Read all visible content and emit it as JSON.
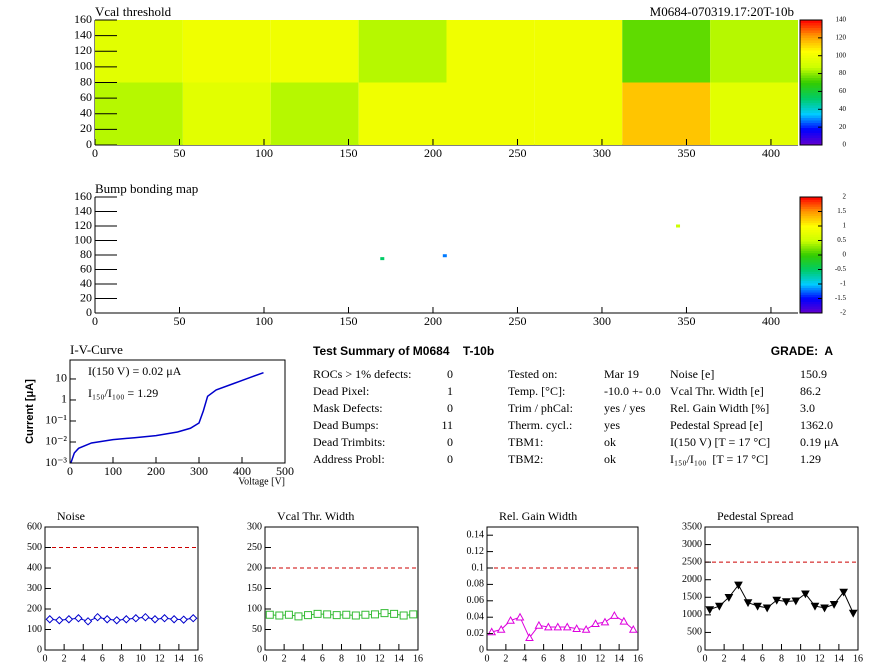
{
  "chart_data": [
    {
      "type": "heatmap",
      "title": "Vcal threshold",
      "annotation": "M0684-070319.17:20T-10b",
      "xbins": [
        0,
        52,
        104,
        156,
        208,
        260,
        312,
        364,
        416
      ],
      "ybins": [
        0,
        80,
        160
      ],
      "z": [
        [
          85,
          95,
          85,
          100,
          100,
          100,
          115,
          95
        ],
        [
          95,
          100,
          100,
          85,
          100,
          100,
          75,
          85
        ]
      ],
      "xlim": [
        0,
        416
      ],
      "ylim": [
        0,
        160
      ],
      "xticks": [
        0,
        50,
        100,
        150,
        200,
        250,
        300,
        350,
        400
      ],
      "yticks": [
        0,
        20,
        40,
        60,
        80,
        100,
        120,
        140,
        160
      ],
      "zlim": [
        0,
        140
      ],
      "zticks": [
        0,
        20,
        40,
        60,
        80,
        100,
        120,
        140
      ],
      "palette": [
        "#6600cc",
        "#0000ff",
        "#00ccff",
        "#00cc66",
        "#33cc00",
        "#ccff00",
        "#ffff00",
        "#ff9900",
        "#ff0000"
      ]
    },
    {
      "type": "scatter",
      "title": "Bump bonding map",
      "x": [
        170,
        207,
        345
      ],
      "y": [
        75,
        79,
        120
      ],
      "z": [
        -0.5,
        -1.2,
        0.5
      ],
      "xlim": [
        0,
        416
      ],
      "ylim": [
        0,
        160
      ],
      "xticks": [
        0,
        50,
        100,
        150,
        200,
        250,
        300,
        350,
        400
      ],
      "yticks": [
        0,
        20,
        40,
        60,
        80,
        100,
        120,
        140,
        160
      ],
      "zlim": [
        -2,
        2
      ],
      "zticks": [
        -2,
        -1.5,
        -1,
        -0.5,
        0,
        0.5,
        1,
        1.5,
        2
      ],
      "palette": [
        "#6600cc",
        "#0000ff",
        "#00ccff",
        "#00cc66",
        "#33cc00",
        "#ccff00",
        "#ffff00",
        "#ff9900",
        "#ff0000"
      ]
    },
    {
      "type": "line",
      "title": "I-V-Curve",
      "x_label": "Voltage [V]",
      "y_label": "Current [μA]",
      "annotations": [
        "I(150 V) = 0.02 μA",
        "I₁₅₀/I₁₀₀ =  1.29"
      ],
      "color": "#0000cc",
      "ylog": true,
      "x": [
        2,
        10,
        20,
        50,
        100,
        150,
        200,
        250,
        280,
        300,
        310,
        320,
        340,
        380,
        420,
        450
      ],
      "values": [
        0.001,
        0.003,
        0.005,
        0.009,
        0.013,
        0.016,
        0.02,
        0.03,
        0.045,
        0.08,
        0.3,
        1.5,
        3,
        6,
        12,
        20
      ],
      "xlim": [
        0,
        500
      ],
      "xticks": [
        0,
        100,
        200,
        300,
        400,
        500
      ],
      "ylim": [
        0.001,
        80
      ],
      "yticks": [
        {
          "value": 0.001,
          "label": "10⁻³"
        },
        {
          "value": 0.01,
          "label": "10⁻²"
        },
        {
          "value": 0.1,
          "label": "10⁻¹"
        },
        1,
        10
      ]
    },
    {
      "type": "markers",
      "title": "Noise",
      "marker": "diamond",
      "color": "#0000cc",
      "threshold": 500,
      "x": [
        0.5,
        1.5,
        2.5,
        3.5,
        4.5,
        5.5,
        6.5,
        7.5,
        8.5,
        9.5,
        10.5,
        11.5,
        12.5,
        13.5,
        14.5,
        15.5
      ],
      "values": [
        150,
        145,
        150,
        155,
        140,
        160,
        150,
        145,
        150,
        155,
        160,
        150,
        155,
        150,
        148,
        155
      ],
      "xlim": [
        0,
        16
      ],
      "xticks": [
        0,
        2,
        4,
        6,
        8,
        10,
        12,
        14,
        16
      ],
      "ylim": [
        0,
        600
      ],
      "yticks": [
        0,
        100,
        200,
        300,
        400,
        500,
        600
      ]
    },
    {
      "type": "markers",
      "title": "Vcal Thr. Width",
      "marker": "square",
      "color": "#33bb33",
      "threshold": 200,
      "x": [
        0.5,
        1.5,
        2.5,
        3.5,
        4.5,
        5.5,
        6.5,
        7.5,
        8.5,
        9.5,
        10.5,
        11.5,
        12.5,
        13.5,
        14.5,
        15.5
      ],
      "values": [
        86,
        84,
        86,
        82,
        85,
        88,
        87,
        85,
        86,
        84,
        86,
        87,
        90,
        88,
        84,
        87
      ],
      "xlim": [
        0,
        16
      ],
      "xticks": [
        0,
        2,
        4,
        6,
        8,
        10,
        12,
        14,
        16
      ],
      "ylim": [
        0,
        300
      ],
      "yticks": [
        0,
        50,
        100,
        150,
        200,
        250,
        300
      ]
    },
    {
      "type": "markers",
      "title": "Rel. Gain Width",
      "marker": "triangle",
      "color": "#dd00dd",
      "threshold": 0.1,
      "x": [
        0.5,
        1.5,
        2.5,
        3.5,
        4.5,
        5.5,
        6.5,
        7.5,
        8.5,
        9.5,
        10.5,
        11.5,
        12.5,
        13.5,
        14.5,
        15.5
      ],
      "values": [
        0.022,
        0.025,
        0.036,
        0.04,
        0.015,
        0.03,
        0.028,
        0.028,
        0.028,
        0.026,
        0.025,
        0.032,
        0.034,
        0.042,
        0.035,
        0.025
      ],
      "xlim": [
        0,
        16
      ],
      "xticks": [
        0,
        2,
        4,
        6,
        8,
        10,
        12,
        14,
        16
      ],
      "ylim": [
        0,
        0.15
      ],
      "yticks": [
        0,
        0.02,
        0.04,
        0.06,
        0.08,
        0.1,
        0.12,
        0.14
      ]
    },
    {
      "type": "markers",
      "title": "Pedestal Spread",
      "marker": "triangle-down",
      "color": "#000000",
      "threshold": 2500,
      "x": [
        0.5,
        1.5,
        2.5,
        3.5,
        4.5,
        5.5,
        6.5,
        7.5,
        8.5,
        9.5,
        10.5,
        11.5,
        12.5,
        13.5,
        14.5,
        15.5
      ],
      "values": [
        1150,
        1250,
        1500,
        1850,
        1350,
        1250,
        1200,
        1420,
        1380,
        1400,
        1600,
        1250,
        1200,
        1300,
        1650,
        1050
      ],
      "xlim": [
        0,
        16
      ],
      "xticks": [
        0,
        2,
        4,
        6,
        8,
        10,
        12,
        14,
        16
      ],
      "ylim": [
        0,
        3500
      ],
      "yticks": [
        0,
        500,
        1000,
        1500,
        2000,
        2500,
        3000,
        3500
      ]
    }
  ],
  "summary": {
    "title": "Test Summary of M0684    T-10b",
    "grade": "GRADE:  A",
    "columns": [
      [
        [
          "ROCs > 1% defects:",
          "0"
        ],
        [
          "Dead Pixel:",
          "1"
        ],
        [
          "Mask Defects:",
          "0"
        ],
        [
          "Dead Bumps:",
          "11"
        ],
        [
          "Dead Trimbits:",
          "0"
        ],
        [
          "Address Probl:",
          "0"
        ]
      ],
      [
        [
          "Tested on:",
          "Mar 19"
        ],
        [
          "Temp. [°C]:",
          "-10.0 +- 0.0"
        ],
        [
          "Trim / phCal:",
          "yes / yes"
        ],
        [
          "Therm. cycl.:",
          "yes"
        ],
        [
          "TBM1:",
          "ok"
        ],
        [
          "TBM2:",
          "ok"
        ]
      ],
      [
        [
          "Noise [e]",
          "150.9"
        ],
        [
          "Vcal Thr. Width [e]",
          "86.2"
        ],
        [
          "Rel. Gain Width [%]",
          "3.0"
        ],
        [
          "Pedestal Spread [e]",
          "1362.0"
        ],
        [
          "I(150 V) [T = 17 °C]",
          "0.19 μA"
        ],
        [
          "I₁₅₀/I₁₀₀  [T = 17 °C]",
          "1.29"
        ]
      ]
    ]
  }
}
